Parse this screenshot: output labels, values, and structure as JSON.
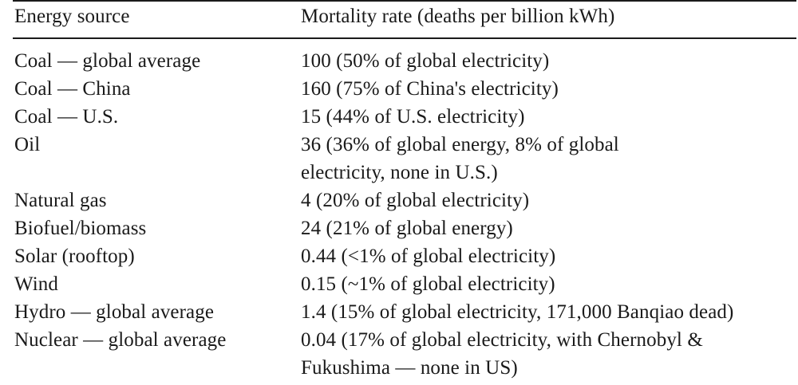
{
  "table": {
    "headers": {
      "source": "Energy source",
      "rate": "Mortality rate (deaths per billion kWh)"
    },
    "rows": [
      {
        "source": "Coal — global average",
        "rate": [
          "100 (50% of global electricity)"
        ]
      },
      {
        "source": "Coal — China",
        "rate": [
          "160 (75% of China's electricity)"
        ]
      },
      {
        "source": "Coal — U.S.",
        "rate": [
          "15 (44% of U.S. electricity)"
        ]
      },
      {
        "source": "Oil",
        "rate": [
          "36 (36% of global energy, 8% of global",
          "electricity, none in U.S.)"
        ]
      },
      {
        "source": "Natural gas",
        "rate": [
          "4 (20% of global electricity)"
        ]
      },
      {
        "source": "Biofuel/biomass",
        "rate": [
          "24 (21% of global energy)"
        ]
      },
      {
        "source": "Solar (rooftop)",
        "rate": [
          "0.44 (<1% of global electricity)"
        ]
      },
      {
        "source": "Wind",
        "rate": [
          "0.15 (~1% of global electricity)"
        ]
      },
      {
        "source": "Hydro — global average",
        "rate": [
          "1.4 (15% of global electricity, 171,000 Banqiao dead)"
        ]
      },
      {
        "source": "Nuclear — global average",
        "rate": [
          "0.04 (17% of global electricity, with Chernobyl &",
          "Fukushima — none in US)"
        ]
      }
    ]
  }
}
